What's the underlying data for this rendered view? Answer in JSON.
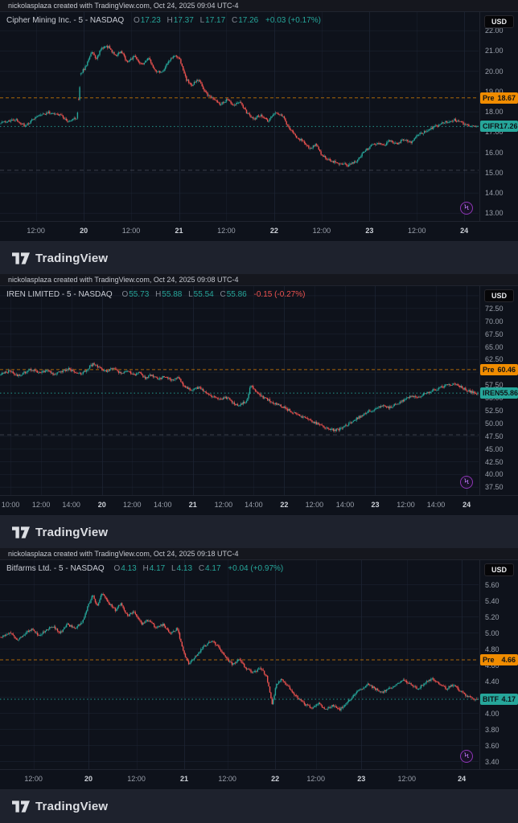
{
  "ui": {
    "currency": "USD",
    "logo_text": "TradingView",
    "ohlc_keys": {
      "o": "O",
      "h": "H",
      "l": "L",
      "c": "C"
    },
    "colors": {
      "up": "#26a69a",
      "down": "#ef5350",
      "pre": "#f08c00",
      "grid": "#1d2433",
      "aux": "#8b93a3"
    }
  },
  "chart_data": [
    {
      "type": "candlestick",
      "attribution": "nickolasplaza created with TradingView.com, Oct 24, 2025 09:04 UTC-4",
      "display_title": "Cipher Mining Inc. - 5 - NASDAQ",
      "ticker": "CIFR",
      "exchange": "NASDAQ",
      "interval": "5",
      "legend": {
        "open": "17.23",
        "high": "17.37",
        "low": "17.17",
        "close": "17.26",
        "change": "+0.03 (+0.17%)",
        "direction": "up",
        "change_direction": "up"
      },
      "pre_badge": {
        "label": "Pre",
        "value": "18.67"
      },
      "last_badge": {
        "label": "CIFR",
        "value": "17.26"
      },
      "pre_market_price": 18.67,
      "last_price": 17.26,
      "aux_line": 15.1,
      "seed": 11,
      "candles": 430,
      "y_axis": {
        "currency": "USD",
        "min": 12.6,
        "max": 22.9,
        "decimals": 2,
        "ticks": [
          22,
          21,
          20,
          19,
          18,
          17,
          16,
          15,
          14,
          13
        ]
      },
      "x_axis": {
        "labels": [
          {
            "text": "12:00",
            "x": 0.075,
            "day": false
          },
          {
            "text": "20",
            "x": 0.175,
            "day": true
          },
          {
            "text": "12:00",
            "x": 0.274,
            "day": false
          },
          {
            "text": "21",
            "x": 0.374,
            "day": true
          },
          {
            "text": "12:00",
            "x": 0.473,
            "day": false
          },
          {
            "text": "22",
            "x": 0.573,
            "day": true
          },
          {
            "text": "12:00",
            "x": 0.672,
            "day": false
          },
          {
            "text": "23",
            "x": 0.772,
            "day": true
          },
          {
            "text": "12:00",
            "x": 0.871,
            "day": false
          },
          {
            "text": "24",
            "x": 0.97,
            "day": true
          }
        ]
      },
      "price_path": [
        [
          0,
          17.45
        ],
        [
          0.03,
          17.6
        ],
        [
          0.05,
          17.3
        ],
        [
          0.08,
          17.8
        ],
        [
          0.1,
          17.95
        ],
        [
          0.125,
          17.8
        ],
        [
          0.14,
          17.55
        ],
        [
          0.16,
          17.7
        ],
        [
          0.168,
          19.9
        ],
        [
          0.178,
          20.2
        ],
        [
          0.19,
          20.95
        ],
        [
          0.2,
          20.6
        ],
        [
          0.212,
          21.15
        ],
        [
          0.225,
          21.2
        ],
        [
          0.24,
          20.75
        ],
        [
          0.252,
          20.95
        ],
        [
          0.265,
          20.45
        ],
        [
          0.28,
          20.7
        ],
        [
          0.295,
          20.3
        ],
        [
          0.31,
          20.6
        ],
        [
          0.325,
          20.0
        ],
        [
          0.338,
          19.95
        ],
        [
          0.352,
          20.5
        ],
        [
          0.365,
          20.75
        ],
        [
          0.376,
          20.55
        ],
        [
          0.388,
          19.6
        ],
        [
          0.4,
          19.3
        ],
        [
          0.415,
          19.55
        ],
        [
          0.43,
          18.9
        ],
        [
          0.445,
          18.6
        ],
        [
          0.46,
          18.35
        ],
        [
          0.475,
          18.6
        ],
        [
          0.49,
          18.3
        ],
        [
          0.502,
          18.5
        ],
        [
          0.515,
          17.95
        ],
        [
          0.53,
          17.6
        ],
        [
          0.545,
          17.85
        ],
        [
          0.56,
          17.5
        ],
        [
          0.575,
          17.95
        ],
        [
          0.59,
          17.8
        ],
        [
          0.605,
          17.15
        ],
        [
          0.62,
          16.75
        ],
        [
          0.635,
          16.5
        ],
        [
          0.648,
          16.15
        ],
        [
          0.66,
          16.4
        ],
        [
          0.672,
          15.9
        ],
        [
          0.685,
          15.65
        ],
        [
          0.7,
          15.5
        ],
        [
          0.715,
          15.4
        ],
        [
          0.73,
          15.35
        ],
        [
          0.745,
          15.55
        ],
        [
          0.76,
          15.95
        ],
        [
          0.775,
          16.3
        ],
        [
          0.79,
          16.45
        ],
        [
          0.802,
          16.3
        ],
        [
          0.815,
          16.55
        ],
        [
          0.83,
          16.4
        ],
        [
          0.845,
          16.65
        ],
        [
          0.86,
          16.5
        ],
        [
          0.875,
          16.85
        ],
        [
          0.89,
          17.0
        ],
        [
          0.905,
          17.2
        ],
        [
          0.92,
          17.35
        ],
        [
          0.935,
          17.5
        ],
        [
          0.95,
          17.6
        ],
        [
          0.965,
          17.45
        ],
        [
          0.98,
          17.3
        ],
        [
          1,
          17.26
        ]
      ]
    },
    {
      "type": "candlestick",
      "attribution": "nickolasplaza created with TradingView.com, Oct 24, 2025 09:08 UTC-4",
      "display_title": "IREN LIMITED - 5 - NASDAQ",
      "ticker": "IREN",
      "exchange": "NASDAQ",
      "interval": "5",
      "legend": {
        "open": "55.73",
        "high": "55.88",
        "low": "55.54",
        "close": "55.86",
        "change": "-0.15 (-0.27%)",
        "direction": "up",
        "change_direction": "down"
      },
      "pre_badge": {
        "label": "Pre",
        "value": "60.46"
      },
      "last_badge": {
        "label": "IREN",
        "value": "55.86"
      },
      "pre_market_price": 60.46,
      "last_price": 55.86,
      "aux_line": 47.7,
      "seed": 23,
      "candles": 430,
      "y_axis": {
        "currency": "USD",
        "min": 35.9,
        "max": 76.8,
        "decimals": 2,
        "ticks": [
          75,
          72.5,
          70,
          67.5,
          65,
          62.5,
          60,
          57.5,
          55,
          52.5,
          50,
          47.5,
          45,
          42.5,
          40,
          37.5
        ]
      },
      "x_axis": {
        "labels": [
          {
            "text": "10:00",
            "x": 0.022,
            "day": false
          },
          {
            "text": "12:00",
            "x": 0.086,
            "day": false
          },
          {
            "text": "14:00",
            "x": 0.149,
            "day": false
          },
          {
            "text": "20",
            "x": 0.213,
            "day": true
          },
          {
            "text": "12:00",
            "x": 0.276,
            "day": false
          },
          {
            "text": "14:00",
            "x": 0.34,
            "day": false
          },
          {
            "text": "21",
            "x": 0.403,
            "day": true
          },
          {
            "text": "12:00",
            "x": 0.467,
            "day": false
          },
          {
            "text": "14:00",
            "x": 0.53,
            "day": false
          },
          {
            "text": "22",
            "x": 0.594,
            "day": true
          },
          {
            "text": "12:00",
            "x": 0.657,
            "day": false
          },
          {
            "text": "14:00",
            "x": 0.721,
            "day": false
          },
          {
            "text": "23",
            "x": 0.784,
            "day": true
          },
          {
            "text": "12:00",
            "x": 0.848,
            "day": false
          },
          {
            "text": "14:00",
            "x": 0.911,
            "day": false
          },
          {
            "text": "24",
            "x": 0.975,
            "day": true
          }
        ]
      },
      "price_path": [
        [
          0,
          59.6
        ],
        [
          0.02,
          60.3
        ],
        [
          0.035,
          59.3
        ],
        [
          0.05,
          59.9
        ],
        [
          0.065,
          60.5
        ],
        [
          0.08,
          59.9
        ],
        [
          0.095,
          60.3
        ],
        [
          0.11,
          59.6
        ],
        [
          0.125,
          60.0
        ],
        [
          0.14,
          60.6
        ],
        [
          0.155,
          60.1
        ],
        [
          0.17,
          59.7
        ],
        [
          0.185,
          60.9
        ],
        [
          0.195,
          61.7
        ],
        [
          0.205,
          60.9
        ],
        [
          0.22,
          60.2
        ],
        [
          0.235,
          60.7
        ],
        [
          0.25,
          59.8
        ],
        [
          0.265,
          60.2
        ],
        [
          0.28,
          59.4
        ],
        [
          0.29,
          59.9
        ],
        [
          0.302,
          58.8
        ],
        [
          0.315,
          59.4
        ],
        [
          0.33,
          58.6
        ],
        [
          0.345,
          59.1
        ],
        [
          0.36,
          58.4
        ],
        [
          0.372,
          58.8
        ],
        [
          0.385,
          57.2
        ],
        [
          0.4,
          56.5
        ],
        [
          0.415,
          57.0
        ],
        [
          0.43,
          55.8
        ],
        [
          0.445,
          55.2
        ],
        [
          0.46,
          54.6
        ],
        [
          0.475,
          55.0
        ],
        [
          0.49,
          53.8
        ],
        [
          0.5,
          53.5
        ],
        [
          0.515,
          54.3
        ],
        [
          0.524,
          57.4
        ],
        [
          0.535,
          56.2
        ],
        [
          0.55,
          55.0
        ],
        [
          0.565,
          54.3
        ],
        [
          0.58,
          53.6
        ],
        [
          0.595,
          53.0
        ],
        [
          0.61,
          52.2
        ],
        [
          0.625,
          51.5
        ],
        [
          0.64,
          50.8
        ],
        [
          0.655,
          50.2
        ],
        [
          0.67,
          49.5
        ],
        [
          0.685,
          49.0
        ],
        [
          0.7,
          48.6
        ],
        [
          0.712,
          48.9
        ],
        [
          0.725,
          49.6
        ],
        [
          0.74,
          50.5
        ],
        [
          0.755,
          51.4
        ],
        [
          0.77,
          52.2
        ],
        [
          0.785,
          52.8
        ],
        [
          0.8,
          53.3
        ],
        [
          0.815,
          53.0
        ],
        [
          0.83,
          53.8
        ],
        [
          0.845,
          54.5
        ],
        [
          0.86,
          55.2
        ],
        [
          0.875,
          55.0
        ],
        [
          0.89,
          55.8
        ],
        [
          0.905,
          56.4
        ],
        [
          0.92,
          56.9
        ],
        [
          0.935,
          57.4
        ],
        [
          0.95,
          57.7
        ],
        [
          0.962,
          57.2
        ],
        [
          0.975,
          56.5
        ],
        [
          0.99,
          56.0
        ],
        [
          1,
          55.86
        ]
      ]
    },
    {
      "type": "candlestick",
      "attribution": "nickolasplaza created with TradingView.com, Oct 24, 2025 09:18 UTC-4",
      "display_title": "Bitfarms Ltd. - 5 - NASDAQ",
      "ticker": "BITF",
      "exchange": "NASDAQ",
      "interval": "5",
      "legend": {
        "open": "4.13",
        "high": "4.17",
        "low": "4.13",
        "close": "4.17",
        "change": "+0.04 (+0.97%)",
        "direction": "up",
        "change_direction": "up"
      },
      "pre_badge": {
        "label": "Pre",
        "value": "4.66"
      },
      "last_badge": {
        "label": "BITF",
        "value": "4.17"
      },
      "pre_market_price": 4.66,
      "last_price": 4.17,
      "aux_line": null,
      "seed": 37,
      "candles": 430,
      "y_axis": {
        "currency": "USD",
        "min": 3.3,
        "max": 5.9,
        "decimals": 2,
        "ticks": [
          5.6,
          5.4,
          5.2,
          5.0,
          4.8,
          4.6,
          4.4,
          4.2,
          4.0,
          3.8,
          3.6,
          3.4
        ]
      },
      "x_axis": {
        "labels": [
          {
            "text": "12:00",
            "x": 0.07,
            "day": false
          },
          {
            "text": "20",
            "x": 0.185,
            "day": true
          },
          {
            "text": "12:00",
            "x": 0.285,
            "day": false
          },
          {
            "text": "21",
            "x": 0.385,
            "day": true
          },
          {
            "text": "12:00",
            "x": 0.475,
            "day": false
          },
          {
            "text": "22",
            "x": 0.575,
            "day": true
          },
          {
            "text": "12:00",
            "x": 0.66,
            "day": false
          },
          {
            "text": "23",
            "x": 0.755,
            "day": true
          },
          {
            "text": "12:00",
            "x": 0.85,
            "day": false
          },
          {
            "text": "24",
            "x": 0.965,
            "day": true
          }
        ]
      },
      "price_path": [
        [
          0,
          4.95
        ],
        [
          0.02,
          5.0
        ],
        [
          0.035,
          4.9
        ],
        [
          0.05,
          4.98
        ],
        [
          0.065,
          5.05
        ],
        [
          0.08,
          4.95
        ],
        [
          0.095,
          5.03
        ],
        [
          0.11,
          5.08
        ],
        [
          0.125,
          5.0
        ],
        [
          0.14,
          5.1
        ],
        [
          0.155,
          5.05
        ],
        [
          0.17,
          5.12
        ],
        [
          0.182,
          5.32
        ],
        [
          0.192,
          5.46
        ],
        [
          0.202,
          5.34
        ],
        [
          0.212,
          5.48
        ],
        [
          0.225,
          5.38
        ],
        [
          0.24,
          5.28
        ],
        [
          0.252,
          5.36
        ],
        [
          0.265,
          5.2
        ],
        [
          0.28,
          5.26
        ],
        [
          0.295,
          5.1
        ],
        [
          0.31,
          5.16
        ],
        [
          0.325,
          5.05
        ],
        [
          0.34,
          5.1
        ],
        [
          0.355,
          5.0
        ],
        [
          0.37,
          5.05
        ],
        [
          0.383,
          4.75
        ],
        [
          0.394,
          4.62
        ],
        [
          0.41,
          4.72
        ],
        [
          0.425,
          4.82
        ],
        [
          0.44,
          4.9
        ],
        [
          0.455,
          4.84
        ],
        [
          0.47,
          4.7
        ],
        [
          0.485,
          4.6
        ],
        [
          0.5,
          4.66
        ],
        [
          0.515,
          4.55
        ],
        [
          0.53,
          4.5
        ],
        [
          0.545,
          4.56
        ],
        [
          0.558,
          4.44
        ],
        [
          0.569,
          4.1
        ],
        [
          0.578,
          4.36
        ],
        [
          0.59,
          4.42
        ],
        [
          0.605,
          4.3
        ],
        [
          0.62,
          4.2
        ],
        [
          0.635,
          4.12
        ],
        [
          0.65,
          4.06
        ],
        [
          0.665,
          4.12
        ],
        [
          0.68,
          4.05
        ],
        [
          0.695,
          4.09
        ],
        [
          0.71,
          4.04
        ],
        [
          0.725,
          4.12
        ],
        [
          0.74,
          4.22
        ],
        [
          0.755,
          4.3
        ],
        [
          0.77,
          4.36
        ],
        [
          0.785,
          4.3
        ],
        [
          0.8,
          4.26
        ],
        [
          0.815,
          4.31
        ],
        [
          0.83,
          4.36
        ],
        [
          0.845,
          4.41
        ],
        [
          0.86,
          4.35
        ],
        [
          0.875,
          4.3
        ],
        [
          0.89,
          4.38
        ],
        [
          0.905,
          4.43
        ],
        [
          0.92,
          4.36
        ],
        [
          0.935,
          4.3
        ],
        [
          0.95,
          4.36
        ],
        [
          0.965,
          4.26
        ],
        [
          0.98,
          4.2
        ],
        [
          1,
          4.17
        ]
      ]
    }
  ]
}
